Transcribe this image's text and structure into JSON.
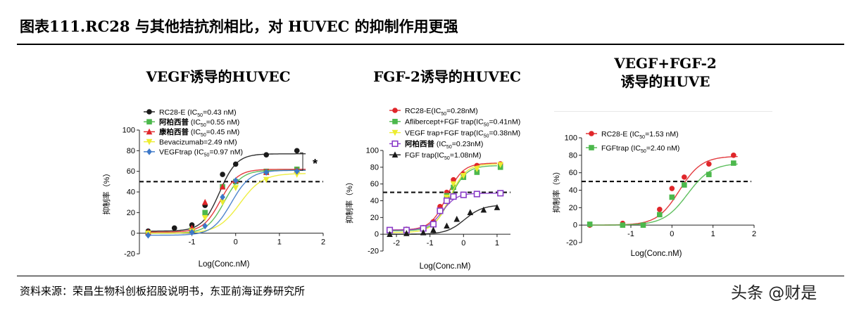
{
  "figure": {
    "title": "图表111.RC28 与其他拮抗剂相比，对 HUVEC 的抑制作用更强",
    "source": "资料来源：荣昌生物科创板招股说明书，东亚前海证券研究所",
    "watermark": "头条 @财是"
  },
  "colors": {
    "black": "#1a1a1a",
    "green": "#4cb84c",
    "red": "#e0262a",
    "yellow": "#ecec30",
    "blue": "#3c78c8",
    "purple": "#8a3cc8"
  },
  "chart_data": [
    {
      "type": "scatter",
      "title": "VEGF诱导的HUVEC",
      "xlabel": "Log(Conc.nM)",
      "ylabel": "抑制率（%）",
      "xlim": [
        -2.2,
        2
      ],
      "ylim": [
        -20,
        100
      ],
      "xticks": [
        "-1",
        "0",
        "1",
        "2"
      ],
      "yticks": [
        "-20",
        "0",
        "20",
        "40",
        "60",
        "80",
        "100"
      ],
      "threshold": 50,
      "annotation": "*",
      "legend": "top-left",
      "series": [
        {
          "name": "RC28-E (IC50=0.43 nM)",
          "label": "RC28-E (IC",
          "sub": "50",
          "tail": "=0.43 nM)",
          "bold": false,
          "color": "black",
          "marker": "circle",
          "top": 77,
          "bottom": 2,
          "ic50": -0.37,
          "hill": 2.2,
          "points": [
            [
              -2,
              2
            ],
            [
              -1.4,
              5
            ],
            [
              -1,
              8
            ],
            [
              -0.7,
              27
            ],
            [
              -0.3,
              57
            ],
            [
              0,
              67
            ],
            [
              0.7,
              76
            ],
            [
              1.4,
              80
            ]
          ]
        },
        {
          "name": "阿柏西普 (IC50=0.55 nM)",
          "label": "阿柏西普",
          "sub": "50",
          "tail": "=0.55 nM)",
          "pre": " (IC",
          "bold": true,
          "color": "green",
          "marker": "square",
          "top": 61,
          "bottom": 0,
          "ic50": -0.26,
          "hill": 2.2,
          "points": [
            [
              -2,
              0
            ],
            [
              -1,
              3
            ],
            [
              -0.7,
              20
            ],
            [
              -0.3,
              45
            ],
            [
              0,
              50
            ],
            [
              0.7,
              60
            ],
            [
              1.4,
              62
            ]
          ]
        },
        {
          "name": "康柏西普 (IC50=0.45 nM)",
          "label": "康柏西普",
          "sub": "50",
          "tail": "=0.45 nM)",
          "pre": " (IC",
          "bold": true,
          "color": "red",
          "marker": "triangle",
          "top": 62,
          "bottom": 1,
          "ic50": -0.35,
          "hill": 2.2,
          "points": [
            [
              -2,
              1
            ],
            [
              -1,
              5
            ],
            [
              -0.7,
              30
            ],
            [
              -0.3,
              45
            ],
            [
              0,
              51
            ],
            [
              0.7,
              59
            ],
            [
              1.4,
              61
            ]
          ]
        },
        {
          "name": "Bevacizumab=2.49 nM)",
          "label": "Bevacizumab=2.49 nM)",
          "bold": false,
          "color": "yellow",
          "marker": "tri-down",
          "top": 58,
          "bottom": 0,
          "ic50": 0.1,
          "hill": 1.7,
          "points": [
            [
              -2,
              0
            ],
            [
              -1,
              2
            ],
            [
              -0.7,
              15
            ],
            [
              -0.3,
              30
            ],
            [
              0,
              44
            ],
            [
              0.7,
              52
            ],
            [
              1.4,
              57
            ]
          ]
        },
        {
          "name": "VEGFtrap (IC50=0.97 nM)",
          "label": "VEGFtrap (IC",
          "sub": "50",
          "tail": "=0.97 nM)",
          "bold": false,
          "color": "blue",
          "marker": "diamond",
          "top": 61,
          "bottom": -2,
          "ic50": -0.1,
          "hill": 2.0,
          "points": [
            [
              -2,
              -2
            ],
            [
              -1,
              1
            ],
            [
              -0.7,
              7
            ],
            [
              -0.3,
              35
            ],
            [
              0,
              51
            ],
            [
              0.7,
              59
            ],
            [
              1.4,
              60
            ]
          ]
        }
      ]
    },
    {
      "type": "scatter",
      "title": "FGF-2诱导的HUVEC",
      "xlabel": "Log(Conc.nM)",
      "ylabel": "抑制率（%）",
      "xlim": [
        -2.4,
        1.4
      ],
      "ylim": [
        -20,
        100
      ],
      "xticks": [
        "-2",
        "-1",
        "0",
        "1"
      ],
      "yticks": [
        "-20",
        "0",
        "20",
        "40",
        "60",
        "80",
        "100"
      ],
      "threshold": 50,
      "legend": "top-left",
      "series": [
        {
          "name": "RC28-E(IC50=0.28nM)",
          "label": "RC28-E(IC",
          "sub": "50",
          "tail": "=0.28nM)",
          "bold": false,
          "color": "red",
          "marker": "circle",
          "top": 85,
          "bottom": 5,
          "ic50": -0.5,
          "hill": 1.8,
          "points": [
            [
              -2.2,
              5
            ],
            [
              -1.7,
              6
            ],
            [
              -1.2,
              8
            ],
            [
              -0.9,
              15
            ],
            [
              -0.7,
              33
            ],
            [
              -0.5,
              50
            ],
            [
              -0.3,
              65
            ],
            [
              0,
              72
            ],
            [
              0.4,
              82
            ],
            [
              1.1,
              84
            ]
          ]
        },
        {
          "name": "Aflibercept+FGF trap(IC50=0.41nM)",
          "label": "Aflibercept+FGF trap(IC",
          "sub": "50",
          "tail": "=0.41nM)",
          "bold": false,
          "color": "green",
          "marker": "square",
          "top": 82,
          "bottom": 4,
          "ic50": -0.4,
          "hill": 1.8,
          "points": [
            [
              -2.2,
              4
            ],
            [
              -1.7,
              5
            ],
            [
              -1.2,
              7
            ],
            [
              -0.9,
              12
            ],
            [
              -0.7,
              28
            ],
            [
              -0.5,
              46
            ],
            [
              -0.3,
              56
            ],
            [
              0,
              68
            ],
            [
              0.4,
              74
            ],
            [
              1.1,
              80
            ]
          ]
        },
        {
          "name": "VEGF trap+FGF trap(IC50=0.38nM)",
          "label": "VEGF trap+FGF trap(IC",
          "sub": "50",
          "tail": "=0.38nM)",
          "bold": false,
          "color": "yellow",
          "marker": "tri-down",
          "top": 84,
          "bottom": 2,
          "ic50": -0.42,
          "hill": 1.8,
          "points": [
            [
              -2.2,
              2
            ],
            [
              -1.7,
              3
            ],
            [
              -1.2,
              5
            ],
            [
              -0.9,
              10
            ],
            [
              -0.7,
              26
            ],
            [
              -0.5,
              44
            ],
            [
              -0.3,
              60
            ],
            [
              0,
              70
            ],
            [
              0.4,
              78
            ],
            [
              1.1,
              83
            ]
          ]
        },
        {
          "name": "阿柏西普 (IC50=0.23nM)",
          "label": "阿柏西普",
          "pre": "  (IC",
          "sub": "50",
          "tail": "=0.23nM)",
          "bold": true,
          "color": "purple",
          "marker": "open-square",
          "top": 49,
          "bottom": 5,
          "ic50": -0.64,
          "hill": 2.0,
          "points": [
            [
              -2.2,
              5
            ],
            [
              -1.7,
              5
            ],
            [
              -1.2,
              7
            ],
            [
              -0.9,
              12
            ],
            [
              -0.7,
              28
            ],
            [
              -0.5,
              40
            ],
            [
              -0.3,
              45
            ],
            [
              0,
              47
            ],
            [
              0.4,
              48
            ],
            [
              1.1,
              49
            ]
          ]
        },
        {
          "name": "FGF trap(IC50=1.08nM)",
          "label": "FGF trap(IC",
          "sub": "50",
          "tail": "=1.08nM)",
          "bold": false,
          "color": "black",
          "marker": "triangle",
          "top": 35,
          "bottom": 0,
          "ic50": 0.03,
          "hill": 1.6,
          "points": [
            [
              -2.2,
              0
            ],
            [
              -1.7,
              1
            ],
            [
              -1.2,
              2
            ],
            [
              -0.9,
              5
            ],
            [
              -0.5,
              10
            ],
            [
              -0.2,
              18
            ],
            [
              0.2,
              26
            ],
            [
              0.6,
              29
            ],
            [
              1.0,
              32
            ]
          ]
        }
      ]
    },
    {
      "type": "scatter",
      "title": "VEGF+FGF-2诱导的HUVE",
      "title_lines": [
        "VEGF+FGF-2",
        "诱导的HUVE"
      ],
      "xlabel": "Log(Conc.nM)",
      "ylabel": "抑制率（%）",
      "xlim": [
        -2.2,
        2
      ],
      "ylim": [
        -20,
        100
      ],
      "xticks": [
        "-1",
        "0",
        "1",
        "2"
      ],
      "yticks": [
        "-20",
        "0",
        "20",
        "40",
        "60",
        "80",
        "100"
      ],
      "threshold": 50,
      "legend": "top-left",
      "series": [
        {
          "name": "RC28-E (IC50=1.53 nM)",
          "label": "RC28-E (IC",
          "sub": "50",
          "tail": "=1.53 nM)",
          "bold": false,
          "color": "red",
          "marker": "circle",
          "top": 79,
          "bottom": 0,
          "ic50": 0.18,
          "hill": 1.6,
          "points": [
            [
              -2,
              0
            ],
            [
              -1.2,
              2
            ],
            [
              -0.7,
              0
            ],
            [
              -0.3,
              18
            ],
            [
              0,
              42
            ],
            [
              0.3,
              55
            ],
            [
              0.9,
              70
            ],
            [
              1.5,
              80
            ]
          ]
        },
        {
          "name": "FGFtrap (IC50=2.40 nM)",
          "label": "FGFtrap (IC",
          "sub": "50",
          "tail": "=2.40 nM)",
          "bold": false,
          "color": "green",
          "marker": "square",
          "top": 71,
          "bottom": 0,
          "ic50": 0.38,
          "hill": 1.5,
          "points": [
            [
              -2,
              1
            ],
            [
              -1.2,
              0
            ],
            [
              -0.7,
              0
            ],
            [
              -0.3,
              12
            ],
            [
              0,
              32
            ],
            [
              0.3,
              46
            ],
            [
              0.9,
              58
            ],
            [
              1.5,
              71
            ]
          ]
        }
      ]
    }
  ]
}
